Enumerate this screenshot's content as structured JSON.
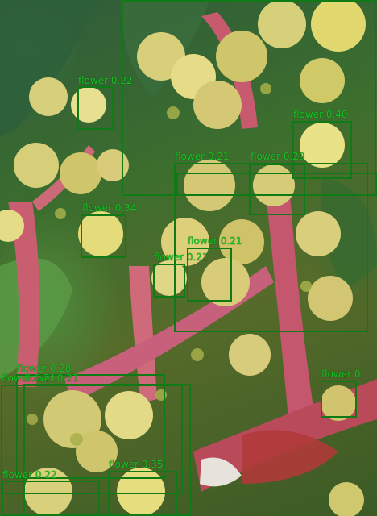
{
  "detections": [
    {
      "label": "flower 0.22"
    },
    {
      "label": "flower 0.21"
    },
    {
      "label": "flower 0.40"
    },
    {
      "label": "flower 0.21"
    },
    {
      "label": "flower 0.29"
    },
    {
      "label": "flower 0.34"
    },
    {
      "label": "flower 0.21"
    },
    {
      "label": "flower 0.21"
    },
    {
      "label": "flower 0.28"
    },
    {
      "label": "flower 0.21"
    },
    {
      "label": "flower 0.21"
    },
    {
      "label": "flower 0."
    },
    {
      "label": "flower 0.22"
    },
    {
      "label": "flower 0.35"
    }
  ],
  "colors": {
    "box": "#0f7a16",
    "label": "#16c322"
  }
}
